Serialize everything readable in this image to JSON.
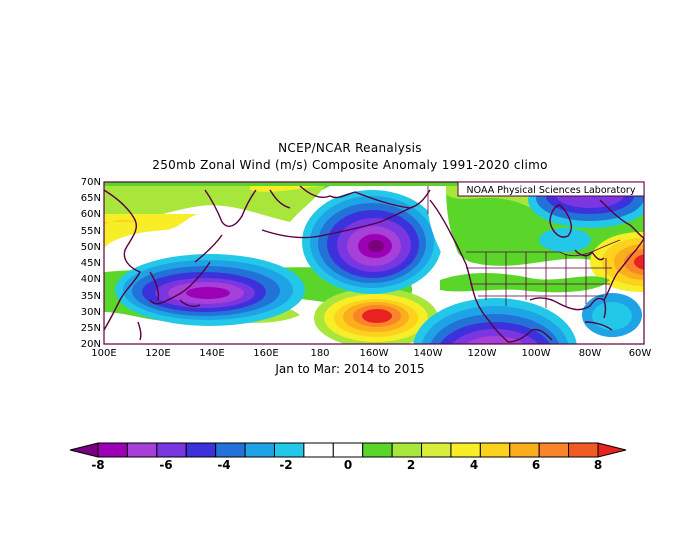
{
  "title_line1": "NCEP/NCAR Reanalysis",
  "title_line2": "250mb Zonal Wind (m/s) Composite Anomaly 1991-2020 climo",
  "subtitle": "Jan to Mar: 2014 to 2015",
  "watermark": "NOAA Physical Sciences Laboratory",
  "lat_labels": [
    "70N",
    "65N",
    "60N",
    "55N",
    "50N",
    "45N",
    "40N",
    "35N",
    "30N",
    "25N",
    "20N"
  ],
  "lon_labels": [
    "100E",
    "120E",
    "140E",
    "160E",
    "180",
    "160W",
    "140W",
    "120W",
    "100W",
    "80W",
    "60W"
  ],
  "colorbar": {
    "tick_labels": [
      "-8",
      "-6",
      "-4",
      "-2",
      "0",
      "2",
      "4",
      "6",
      "8"
    ],
    "colors": [
      "#7a0080",
      "#9b00b5",
      "#a640d8",
      "#7a36e0",
      "#3c32dc",
      "#2272d8",
      "#1ea3e6",
      "#23c8e8",
      "#ffffff",
      "#ffffff",
      "#5ad62a",
      "#a8e63c",
      "#d8ec3c",
      "#f8ee28",
      "#fcd21e",
      "#fbae1c",
      "#f9842a",
      "#f25a24",
      "#e8221e"
    ]
  },
  "map_extent": {
    "lon_min": 100,
    "lon_max": 300,
    "lat_min": 20,
    "lat_max": 70
  }
}
